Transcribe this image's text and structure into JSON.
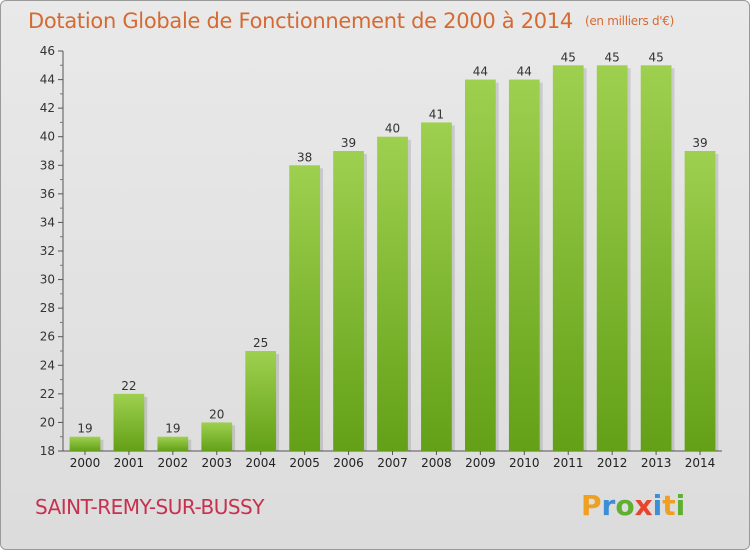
{
  "title": "Dotation Globale de Fonctionnement de 2000 à 2014",
  "unit": "(en milliers d'€)",
  "commune": "SAINT-REMY-SUR-BUSSY",
  "logo": "Proxiti",
  "colors": {
    "bar_top": "#9ed04f",
    "bar_bottom": "#63a017",
    "title": "#d56a32",
    "commune": "#c8304f"
  },
  "chart_data": {
    "type": "bar",
    "title": "Dotation Globale de Fonctionnement de 2000 à 2014",
    "subtitle": "(en milliers d'€)",
    "categories": [
      "2000",
      "2001",
      "2002",
      "2003",
      "2004",
      "2005",
      "2006",
      "2007",
      "2008",
      "2009",
      "2010",
      "2011",
      "2012",
      "2013",
      "2014"
    ],
    "values": [
      19,
      22,
      19,
      20,
      25,
      38,
      39,
      40,
      41,
      44,
      44,
      45,
      45,
      45,
      39
    ],
    "ylim": [
      18,
      46
    ],
    "yticks": [
      18,
      20,
      22,
      24,
      26,
      28,
      30,
      32,
      34,
      36,
      38,
      40,
      42,
      44,
      46
    ],
    "xlabel": "",
    "ylabel": "",
    "grid": false,
    "data_labels": true
  }
}
